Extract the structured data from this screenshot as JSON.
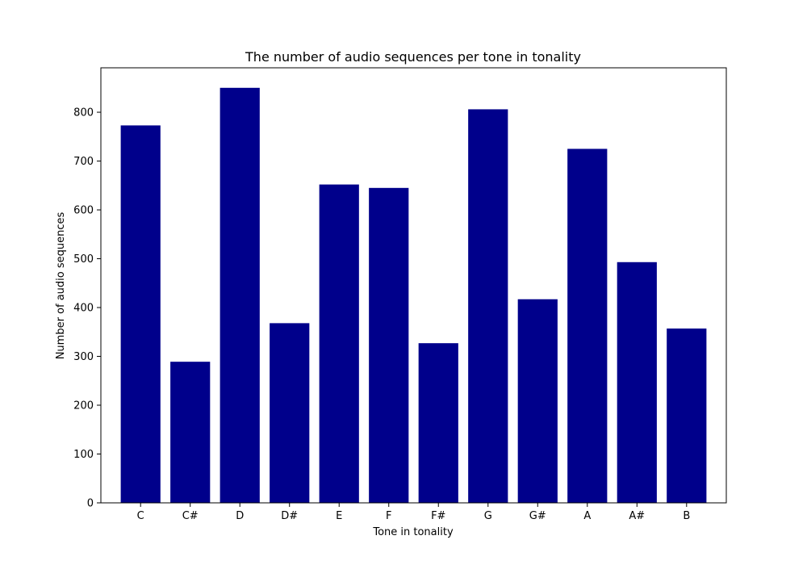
{
  "chart_data": {
    "type": "bar",
    "title": "The number of audio sequences per tone in tonality",
    "xlabel": "Tone in tonality",
    "ylabel": "Number of audio sequences",
    "categories": [
      "C",
      "C#",
      "D",
      "D#",
      "E",
      "F",
      "F#",
      "G",
      "G#",
      "A",
      "A#",
      "B"
    ],
    "values": [
      773,
      289,
      850,
      368,
      652,
      645,
      327,
      806,
      417,
      725,
      493,
      357
    ],
    "ylim": [
      0,
      891
    ],
    "yticks": [
      "0",
      "100",
      "200",
      "300",
      "400",
      "500",
      "600",
      "700",
      "800"
    ],
    "bar_color": "#00008b",
    "grid": false,
    "legend": "none"
  }
}
